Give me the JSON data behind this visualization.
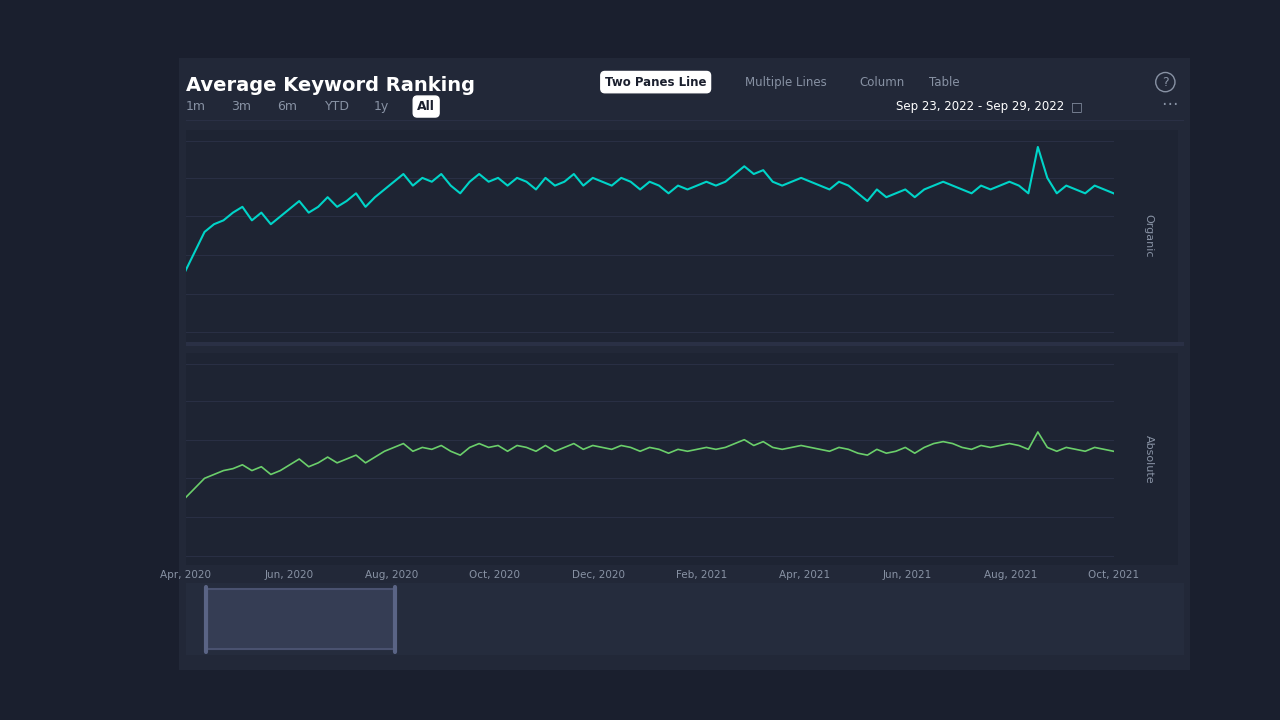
{
  "title": "Average Keyword Ranking",
  "bg_color": "#1a1f2e",
  "panel_bg": "#1e2433",
  "card_bg": "#222838",
  "line_color_top": "#00d4c8",
  "line_color_bottom": "#6bcf6b",
  "grid_color": "#2a3045",
  "text_color": "#ffffff",
  "muted_color": "#8892a4",
  "date_range": "Sep 23, 2022 - Sep 29, 2022",
  "tabs": [
    "1m",
    "3m",
    "6m",
    "YTD",
    "1y",
    "All"
  ],
  "active_tab": "All",
  "view_tabs": [
    "Two Panes Line",
    "Multiple Lines",
    "Column",
    "Table"
  ],
  "active_view": "Two Panes Line",
  "x_labels": [
    "Apr, 2020",
    "Jun, 2020",
    "Aug, 2020",
    "Oct, 2020",
    "Dec, 2020",
    "Feb, 2021",
    "Apr, 2021",
    "Jun, 2021",
    "Aug, 2021",
    "Oct, 2021"
  ],
  "y_ticks": [
    1,
    20,
    40,
    60,
    80,
    100
  ],
  "y_label_top": "Organic",
  "y_label_bottom": "Absolute",
  "organic_data": [
    68,
    58,
    48,
    44,
    42,
    38,
    35,
    42,
    38,
    44,
    40,
    36,
    32,
    38,
    35,
    30,
    35,
    32,
    28,
    35,
    30,
    26,
    22,
    18,
    24,
    20,
    22,
    18,
    24,
    28,
    22,
    18,
    22,
    20,
    24,
    20,
    22,
    26,
    20,
    24,
    22,
    18,
    24,
    20,
    22,
    24,
    20,
    22,
    26,
    22,
    24,
    28,
    24,
    26,
    24,
    22,
    24,
    22,
    18,
    14,
    18,
    16,
    22,
    24,
    22,
    20,
    22,
    24,
    26,
    22,
    24,
    28,
    32,
    26,
    30,
    28,
    26,
    30,
    26,
    24,
    22,
    24,
    26,
    28,
    24,
    26,
    24,
    22,
    24,
    28,
    4,
    20,
    28,
    24,
    26,
    28,
    24,
    26,
    28
  ],
  "absolute_data": [
    70,
    65,
    60,
    58,
    56,
    55,
    53,
    56,
    54,
    58,
    56,
    53,
    50,
    54,
    52,
    49,
    52,
    50,
    48,
    52,
    49,
    46,
    44,
    42,
    46,
    44,
    45,
    43,
    46,
    48,
    44,
    42,
    44,
    43,
    46,
    43,
    44,
    46,
    43,
    46,
    44,
    42,
    45,
    43,
    44,
    45,
    43,
    44,
    46,
    44,
    45,
    47,
    45,
    46,
    45,
    44,
    45,
    44,
    42,
    40,
    43,
    41,
    44,
    45,
    44,
    43,
    44,
    45,
    46,
    44,
    45,
    47,
    48,
    45,
    47,
    46,
    44,
    47,
    44,
    42,
    41,
    42,
    44,
    45,
    43,
    44,
    43,
    42,
    43,
    45,
    36,
    44,
    46,
    44,
    45,
    46,
    44,
    45,
    46
  ]
}
